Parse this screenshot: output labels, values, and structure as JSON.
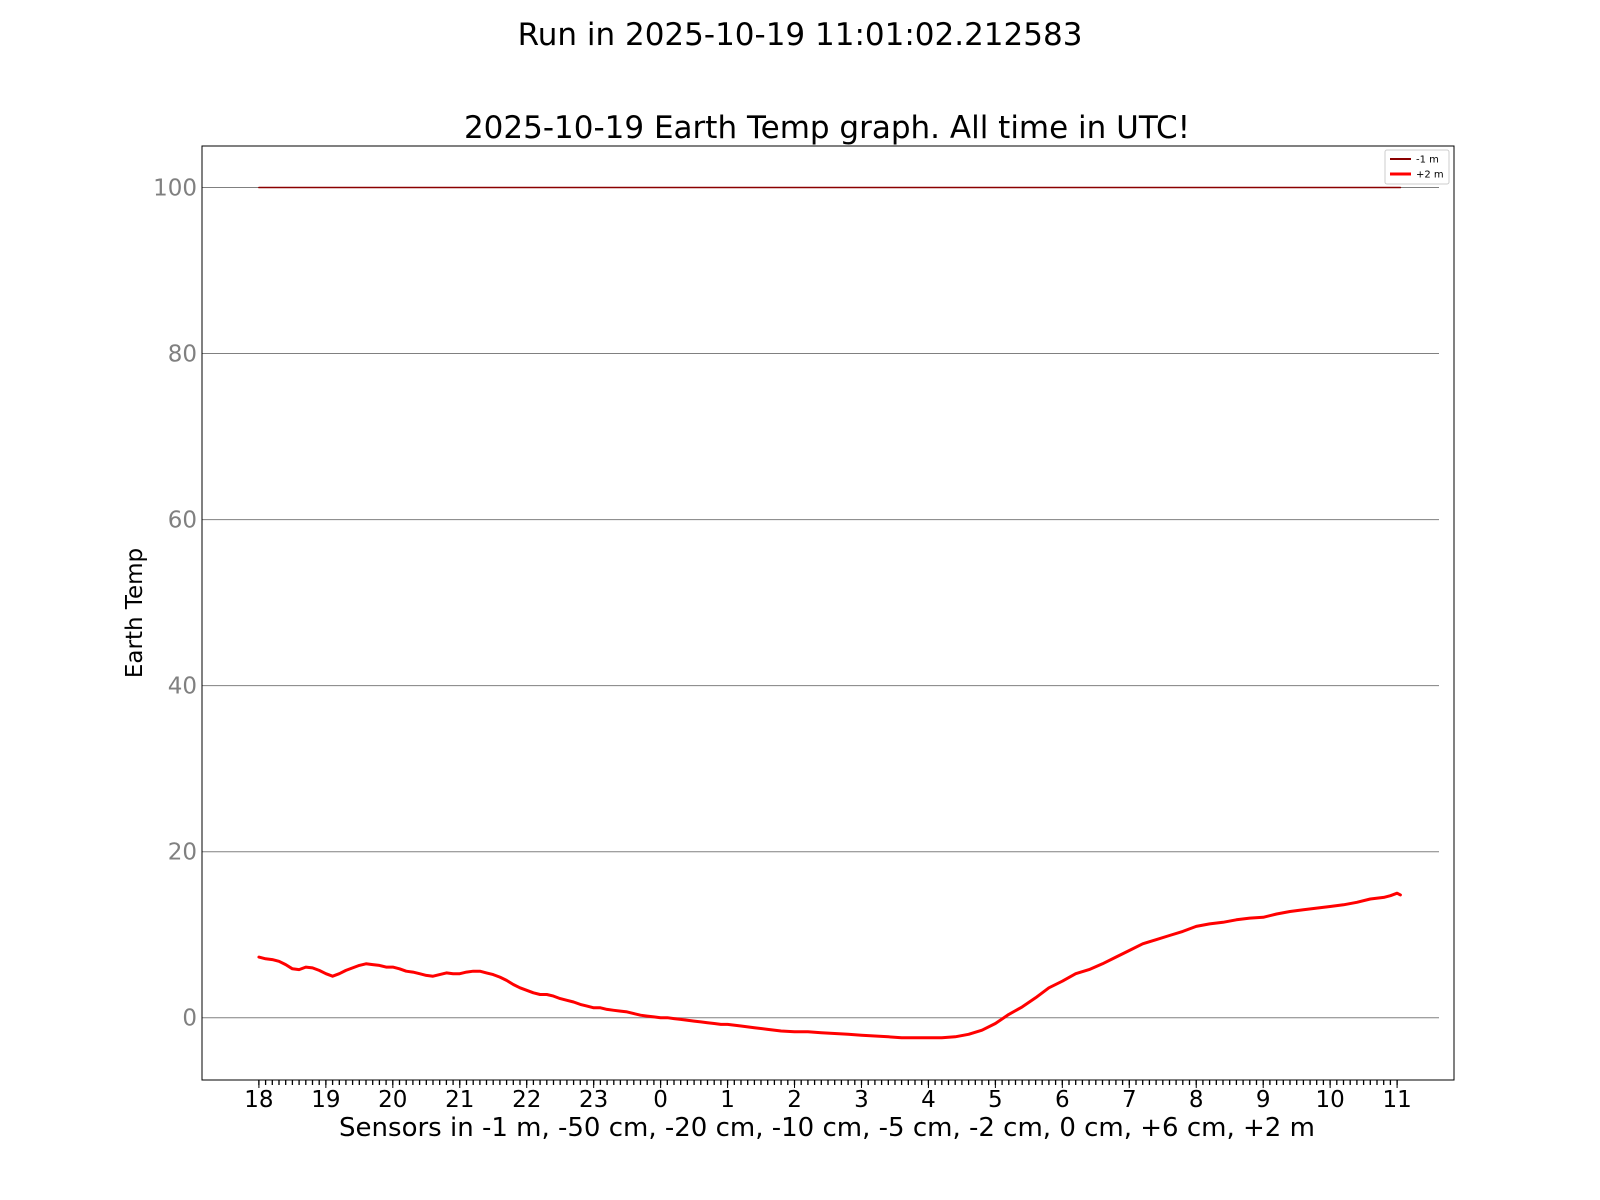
{
  "figure": {
    "suptitle": "Run in 2025-10-19 11:01:02.212583"
  },
  "chart_data": {
    "type": "line",
    "title": "2025-10-19 Earth Temp graph. All time in UTC!",
    "xlabel": "Sensors in  -1 m, -50 cm, -20 cm, -10 cm, -5 cm, -2 cm, 0 cm, +6 cm, +2 m",
    "ylabel": "Earth Temp",
    "x_tick_labels": [
      "18",
      "19",
      "20",
      "21",
      "22",
      "23",
      "0",
      "1",
      "2",
      "3",
      "4",
      "5",
      "6",
      "7",
      "8",
      "9",
      "10",
      "11"
    ],
    "x_unit": "hours elapsed since 18:00 UTC",
    "xlim": [
      -0.85,
      17.85
    ],
    "yticks": [
      0,
      20,
      40,
      60,
      80,
      100
    ],
    "ylim": [
      -7.5,
      105
    ],
    "grid": "horizontal",
    "legend_position": "upper right",
    "colors": {
      "-1 m": "#8b0000",
      "+2 m": "#ff0000",
      "grid": "#808080",
      "ytick_label": "#808080"
    },
    "series": [
      {
        "name": "-1 m",
        "color": "#8b0000",
        "x": [
          0,
          17.05
        ],
        "y": [
          100,
          100
        ]
      },
      {
        "name": "+2 m",
        "color": "#ff0000",
        "x": [
          0,
          0.1,
          0.2,
          0.3,
          0.4,
          0.5,
          0.6,
          0.7,
          0.8,
          0.9,
          1.0,
          1.1,
          1.2,
          1.3,
          1.4,
          1.5,
          1.6,
          1.7,
          1.8,
          1.9,
          2.0,
          2.1,
          2.2,
          2.3,
          2.4,
          2.5,
          2.6,
          2.7,
          2.8,
          2.9,
          3.0,
          3.1,
          3.2,
          3.3,
          3.4,
          3.5,
          3.6,
          3.7,
          3.8,
          3.9,
          4.0,
          4.1,
          4.2,
          4.3,
          4.4,
          4.5,
          4.6,
          4.7,
          4.8,
          4.9,
          5.0,
          5.1,
          5.2,
          5.3,
          5.4,
          5.5,
          5.6,
          5.7,
          5.8,
          5.9,
          6.0,
          6.1,
          6.2,
          6.3,
          6.4,
          6.5,
          6.6,
          6.7,
          6.8,
          6.9,
          7.0,
          7.2,
          7.4,
          7.6,
          7.8,
          8.0,
          8.2,
          8.4,
          8.6,
          8.8,
          9.0,
          9.2,
          9.4,
          9.6,
          9.8,
          10.0,
          10.2,
          10.4,
          10.6,
          10.8,
          11.0,
          11.2,
          11.4,
          11.6,
          11.8,
          12.0,
          12.2,
          12.4,
          12.6,
          12.8,
          13.0,
          13.2,
          13.4,
          13.6,
          13.8,
          14.0,
          14.2,
          14.4,
          14.6,
          14.8,
          15.0,
          15.2,
          15.4,
          15.6,
          15.8,
          16.0,
          16.2,
          16.4,
          16.6,
          16.8,
          16.9,
          17.0,
          17.05
        ],
        "y": [
          7.3,
          7.1,
          7.0,
          6.8,
          6.4,
          5.9,
          5.8,
          6.1,
          6.0,
          5.7,
          5.3,
          5.0,
          5.3,
          5.7,
          6.0,
          6.3,
          6.5,
          6.4,
          6.3,
          6.1,
          6.1,
          5.9,
          5.6,
          5.5,
          5.3,
          5.1,
          5.0,
          5.2,
          5.4,
          5.3,
          5.3,
          5.5,
          5.6,
          5.6,
          5.4,
          5.2,
          4.9,
          4.5,
          4.0,
          3.6,
          3.3,
          3.0,
          2.8,
          2.8,
          2.6,
          2.3,
          2.1,
          1.9,
          1.6,
          1.4,
          1.2,
          1.2,
          1.0,
          0.9,
          0.8,
          0.7,
          0.5,
          0.3,
          0.2,
          0.1,
          0.0,
          0.0,
          -0.1,
          -0.2,
          -0.3,
          -0.4,
          -0.5,
          -0.6,
          -0.7,
          -0.8,
          -0.8,
          -1.0,
          -1.2,
          -1.4,
          -1.6,
          -1.7,
          -1.7,
          -1.8,
          -1.9,
          -2.0,
          -2.1,
          -2.2,
          -2.3,
          -2.4,
          -2.4,
          -2.4,
          -2.4,
          -2.3,
          -2.0,
          -1.5,
          -0.7,
          0.4,
          1.3,
          2.4,
          3.6,
          4.4,
          5.3,
          5.8,
          6.5,
          7.3,
          8.1,
          8.9,
          9.4,
          9.9,
          10.4,
          11.0,
          11.3,
          11.5,
          11.8,
          12.0,
          12.1,
          12.5,
          12.8,
          13.0,
          13.2,
          13.4,
          13.6,
          13.9,
          14.3,
          14.5,
          14.7,
          15.0,
          14.8
        ]
      }
    ]
  }
}
